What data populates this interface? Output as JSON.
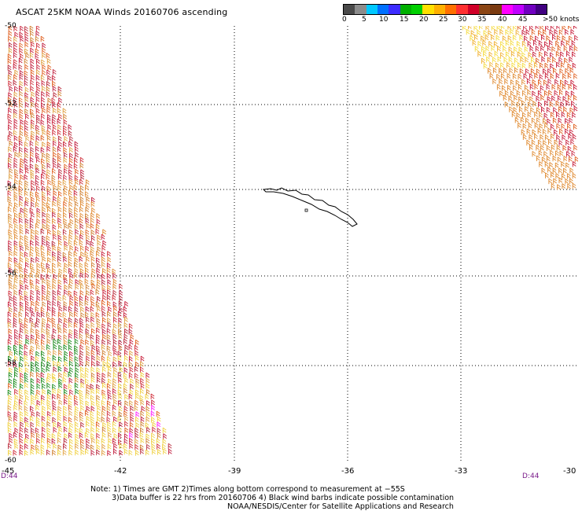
{
  "title": "ASCAT 25KM NOAA Winds 20160706 ascending",
  "scale": {
    "colors": [
      "#4a4a4a",
      "#8c8c8c",
      "#00c8ff",
      "#0070ff",
      "#3c2cff",
      "#00b000",
      "#00d000",
      "#ffe000",
      "#ffb000",
      "#ff7000",
      "#ff3030",
      "#d00028",
      "#8b4513",
      "#7a3a10",
      "#ff00ff",
      "#c000ff",
      "#7000c0",
      "#400080"
    ],
    "labels": [
      "0",
      "5",
      "10",
      "15",
      "20",
      "25",
      "30",
      "35",
      "40",
      "45",
      ">50 knots"
    ]
  },
  "lat_labels": [
    "-50",
    "-52",
    "-54",
    "-56",
    "-58",
    "-60"
  ],
  "lon_labels": [
    "-45",
    "-42",
    "-39",
    "-36",
    "-33",
    "-30"
  ],
  "time_labels": [
    "D:44",
    "D:44"
  ],
  "notes": [
    "Note: 1) Times are GMT 2)Times along bottom correspond to measurement at −55S",
    "3)Data buffer is 22 hrs from 20160706 4) Black wind barbs indicate possible contamination",
    "NOAA/NESDIS/Center for Satellite Applications and Research"
  ]
}
